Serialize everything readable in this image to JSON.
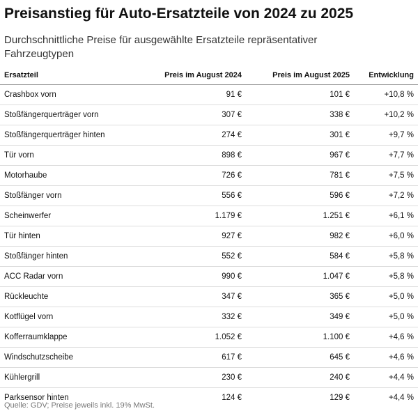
{
  "header": {
    "title": "Preisanstieg für Auto-Ersatzteile von 2024 zu 2025",
    "subtitle": "Durchschnittliche Preise für ausgewählte Ersatzteile repräsentativer Fahrzeugtypen"
  },
  "table": {
    "columns": [
      "Ersatzteil",
      "Preis im August 2024",
      "Preis im August 2025",
      "Entwicklung"
    ],
    "rows": [
      [
        "Crashbox vorn",
        "91 €",
        "101 €",
        "+10,8 %"
      ],
      [
        "Stoßfängerquerträger vorn",
        "307 €",
        "338 €",
        "+10,2 %"
      ],
      [
        "Stoßfängerquerträger hinten",
        "274 €",
        "301 €",
        "+9,7 %"
      ],
      [
        "Tür vorn",
        "898 €",
        "967 €",
        "+7,7 %"
      ],
      [
        "Motorhaube",
        "726 €",
        "781 €",
        "+7,5 %"
      ],
      [
        "Stoßfänger vorn",
        "556 €",
        "596 €",
        "+7,2 %"
      ],
      [
        "Scheinwerfer",
        "1.179 €",
        "1.251 €",
        "+6,1 %"
      ],
      [
        "Tür hinten",
        "927 €",
        "982 €",
        "+6,0 %"
      ],
      [
        "Stoßfänger hinten",
        "552 €",
        "584 €",
        "+5,8 %"
      ],
      [
        "ACC Radar vorn",
        "990 €",
        "1.047 €",
        "+5,8 %"
      ],
      [
        "Rückleuchte",
        "347 €",
        "365 €",
        "+5,0 %"
      ],
      [
        "Kotflügel vorn",
        "332 €",
        "349 €",
        "+5,0 %"
      ],
      [
        "Kofferraumklappe",
        "1.052 €",
        "1.100 €",
        "+4,6 %"
      ],
      [
        "Windschutzscheibe",
        "617 €",
        "645 €",
        "+4,6 %"
      ],
      [
        "Kühlergrill",
        "230 €",
        "240 €",
        "+4,4 %"
      ],
      [
        "Parksensor hinten",
        "124 €",
        "129 €",
        "+4,4 %"
      ]
    ]
  },
  "footer": {
    "source": "Quelle: GDV; Preise jeweils inkl. 19% MwSt."
  }
}
